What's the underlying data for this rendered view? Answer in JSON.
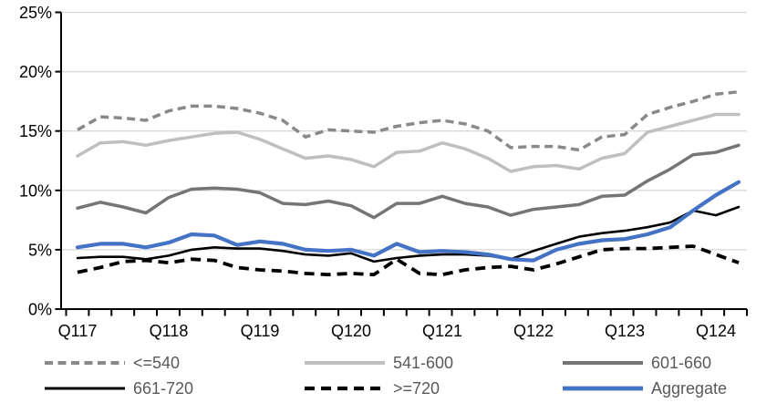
{
  "chart_data": {
    "type": "line",
    "title": "",
    "xlabel": "",
    "ylabel": "",
    "ylim": [
      0,
      25
    ],
    "y_tick_labels": [
      "0%",
      "5%",
      "10%",
      "15%",
      "20%",
      "25%"
    ],
    "x_tick_labels": [
      "Q117",
      "Q118",
      "Q119",
      "Q120",
      "Q121",
      "Q122",
      "Q123",
      "Q124"
    ],
    "x_quarters": [
      "Q117",
      "Q217",
      "Q317",
      "Q417",
      "Q118",
      "Q218",
      "Q318",
      "Q418",
      "Q119",
      "Q219",
      "Q319",
      "Q419",
      "Q120",
      "Q220",
      "Q320",
      "Q420",
      "Q121",
      "Q221",
      "Q321",
      "Q421",
      "Q122",
      "Q222",
      "Q322",
      "Q422",
      "Q123",
      "Q223",
      "Q323",
      "Q423",
      "Q124",
      "Q224"
    ],
    "grid": "horizontal",
    "legend_position": "bottom",
    "axis_color": "#000000",
    "gridline_color": "#d9d9d9",
    "series": [
      {
        "name": "<=540",
        "color": "#898989",
        "line_style": "dashed",
        "values": [
          15.1,
          16.2,
          16.1,
          15.9,
          16.7,
          17.1,
          17.1,
          16.9,
          16.5,
          15.9,
          14.5,
          15.1,
          15.0,
          14.9,
          15.4,
          15.7,
          15.9,
          15.6,
          15.0,
          13.6,
          13.7,
          13.7,
          13.4,
          14.5,
          14.7,
          16.4,
          17.0,
          17.5,
          18.1,
          18.3
        ]
      },
      {
        "name": "541-600",
        "color": "#bfbfbf",
        "line_style": "solid",
        "values": [
          12.9,
          14.0,
          14.1,
          13.8,
          14.2,
          14.5,
          14.8,
          14.9,
          14.3,
          13.5,
          12.7,
          12.9,
          12.6,
          12.0,
          13.2,
          13.3,
          14.0,
          13.5,
          12.7,
          11.6,
          12.0,
          12.1,
          11.8,
          12.7,
          13.1,
          14.9,
          15.4,
          15.9,
          16.4,
          16.4
        ]
      },
      {
        "name": "601-660",
        "color": "#757575",
        "line_style": "solid",
        "values": [
          8.5,
          9.0,
          8.6,
          8.1,
          9.4,
          10.1,
          10.2,
          10.1,
          9.8,
          8.9,
          8.8,
          9.1,
          8.7,
          7.7,
          8.9,
          8.9,
          9.5,
          8.9,
          8.6,
          7.9,
          8.4,
          8.6,
          8.8,
          9.5,
          9.6,
          10.8,
          11.8,
          13.0,
          13.2,
          13.8
        ]
      },
      {
        "name": "661-720",
        "color": "#000000",
        "line_style": "solid",
        "values": [
          4.3,
          4.4,
          4.4,
          4.2,
          4.5,
          5.0,
          5.2,
          5.1,
          5.1,
          4.9,
          4.6,
          4.5,
          4.7,
          4.0,
          4.3,
          4.5,
          4.6,
          4.6,
          4.5,
          4.2,
          4.9,
          5.5,
          6.1,
          6.4,
          6.6,
          6.9,
          7.3,
          8.3,
          7.9,
          8.6
        ]
      },
      {
        "name": ">=720",
        "color": "#000000",
        "line_style": "dashed",
        "values": [
          3.1,
          3.5,
          4.0,
          4.1,
          3.9,
          4.2,
          4.1,
          3.5,
          3.3,
          3.2,
          3.0,
          2.9,
          3.0,
          2.9,
          4.2,
          3.0,
          2.9,
          3.3,
          3.5,
          3.6,
          3.3,
          3.8,
          4.4,
          5.0,
          5.1,
          5.1,
          5.2,
          5.3,
          4.6,
          3.9
        ]
      },
      {
        "name": "Aggregate",
        "color": "#4472c4",
        "line_style": "solid",
        "values": [
          5.2,
          5.5,
          5.5,
          5.2,
          5.6,
          6.3,
          6.2,
          5.4,
          5.7,
          5.5,
          5.0,
          4.9,
          5.0,
          4.5,
          5.5,
          4.8,
          4.9,
          4.8,
          4.6,
          4.2,
          4.1,
          5.0,
          5.5,
          5.8,
          5.9,
          6.3,
          6.9,
          8.3,
          9.6,
          10.7
        ]
      }
    ]
  }
}
